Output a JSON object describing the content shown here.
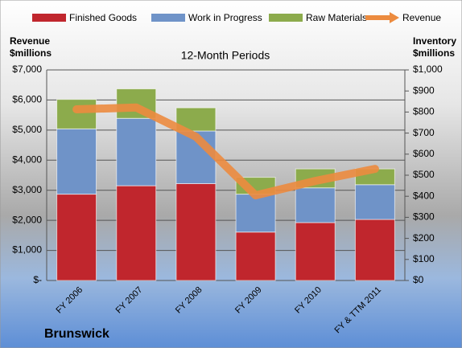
{
  "chart_data": {
    "type": "bar",
    "title": "12-Month Periods",
    "company": "Brunswick",
    "y_label": "Revenue $millions",
    "y2_label": "Inventory $millions",
    "categories": [
      "FY 2006",
      "FY 2007",
      "FY 2008",
      "FY 2009",
      "FY 2010",
      "FY & TTM 2011"
    ],
    "stacked": true,
    "legend": "top",
    "grid": true,
    "series": [
      {
        "name": "Finished Goods",
        "color": "#c0262d",
        "axis": "y2",
        "values": [
          410,
          450,
          460,
          230,
          275,
          290
        ]
      },
      {
        "name": "Work in Progress",
        "color": "#6f93c8",
        "axis": "y2",
        "values": [
          310,
          320,
          250,
          180,
          165,
          165
        ]
      },
      {
        "name": "Raw Materials",
        "color": "#8cab4c",
        "axis": "y2",
        "values": [
          140,
          140,
          110,
          80,
          90,
          75
        ]
      },
      {
        "name": "Revenue",
        "type": "line",
        "color": "#ec8b3f",
        "axis": "y",
        "values": [
          5690,
          5750,
          4780,
          2830,
          3310,
          3710
        ]
      }
    ],
    "ylim": [
      0,
      7000
    ],
    "yticks": [
      {
        "value": 0,
        "label": "$-"
      },
      {
        "value": 1000,
        "label": "$1,000"
      },
      {
        "value": 2000,
        "label": "$2,000"
      },
      {
        "value": 3000,
        "label": "$3,000"
      },
      {
        "value": 4000,
        "label": "$4,000"
      },
      {
        "value": 5000,
        "label": "$5,000"
      },
      {
        "value": 6000,
        "label": "$6,000"
      },
      {
        "value": 7000,
        "label": "$7,000"
      }
    ],
    "y2lim": [
      0,
      1000
    ],
    "y2ticks": [
      {
        "value": 0,
        "label": "$0"
      },
      {
        "value": 100,
        "label": "$100"
      },
      {
        "value": 200,
        "label": "$200"
      },
      {
        "value": 300,
        "label": "$300"
      },
      {
        "value": 400,
        "label": "$400"
      },
      {
        "value": 500,
        "label": "$500"
      },
      {
        "value": 600,
        "label": "$600"
      },
      {
        "value": 700,
        "label": "$700"
      },
      {
        "value": 800,
        "label": "$800"
      },
      {
        "value": 900,
        "label": "$900"
      },
      {
        "value": 1000,
        "label": "$1,000"
      }
    ]
  }
}
